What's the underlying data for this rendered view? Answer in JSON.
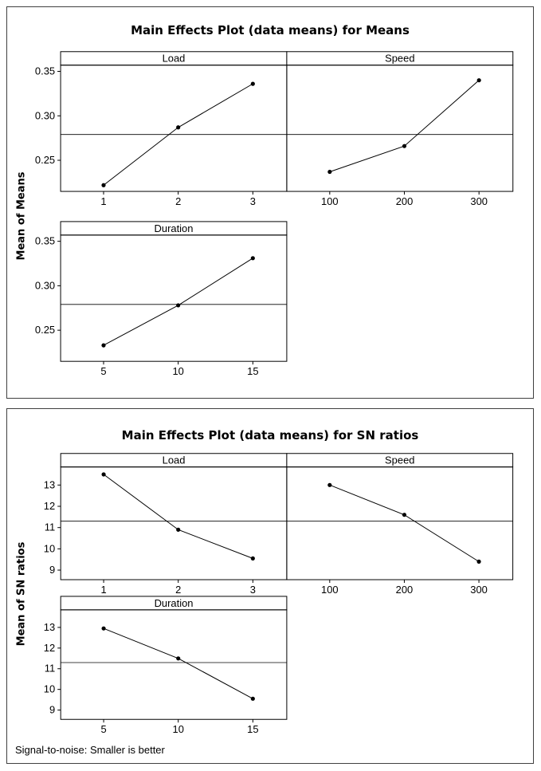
{
  "page": {
    "background": "#ffffff",
    "frame_border_color": "#404040",
    "line_color": "#000000"
  },
  "chart_data": [
    {
      "type": "line",
      "title": "Main Effects Plot (data means) for Means",
      "ylabel": "Mean of Means",
      "ylim": [
        0.215,
        0.357
      ],
      "yticks": [
        0.25,
        0.3,
        0.35
      ],
      "y_decimals": 2,
      "reference_line": 0.279,
      "grid": false,
      "legend": "none",
      "panels": [
        {
          "label": "Load",
          "categories": [
            "1",
            "2",
            "3"
          ],
          "values": [
            0.222,
            0.287,
            0.336
          ]
        },
        {
          "label": "Speed",
          "categories": [
            "100",
            "200",
            "300"
          ],
          "values": [
            0.237,
            0.266,
            0.34
          ]
        },
        {
          "label": "Duration",
          "categories": [
            "5",
            "10",
            "15"
          ],
          "values": [
            0.233,
            0.278,
            0.331
          ]
        }
      ]
    },
    {
      "type": "line",
      "title": "Main Effects Plot (data means) for SN ratios",
      "ylabel": "Mean of SN ratios",
      "ylim": [
        8.55,
        13.85
      ],
      "yticks": [
        9,
        10,
        11,
        12,
        13
      ],
      "y_decimals": 0,
      "reference_line": 11.3,
      "grid": false,
      "legend": "none",
      "footer": "Signal-to-noise:  Smaller is better",
      "panels": [
        {
          "label": "Load",
          "categories": [
            "1",
            "2",
            "3"
          ],
          "values": [
            13.5,
            10.9,
            9.55
          ]
        },
        {
          "label": "Speed",
          "categories": [
            "100",
            "200",
            "300"
          ],
          "values": [
            13.0,
            11.6,
            9.4
          ]
        },
        {
          "label": "Duration",
          "categories": [
            "5",
            "10",
            "15"
          ],
          "values": [
            12.95,
            11.5,
            9.55
          ]
        }
      ]
    }
  ]
}
